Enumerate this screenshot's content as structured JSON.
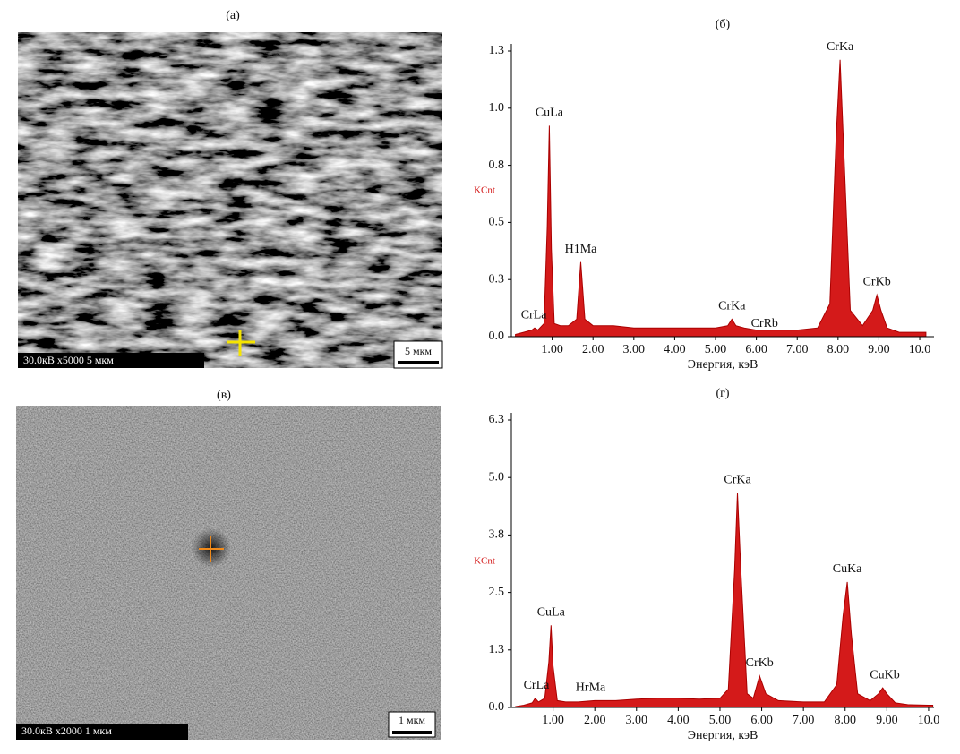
{
  "images": [
    {
      "label": "(а)",
      "info": "30.0кВ  x5000 5 мкм",
      "scale": "5 мкм"
    },
    {
      "label": "(в)",
      "info": "30.0кВ  x2000 1 мкм",
      "scale": "1 мкм"
    }
  ],
  "chart_data": [
    {
      "type": "area",
      "title": "(б)",
      "ylabel": "KCnt",
      "xlabel": "Энергия, кэВ",
      "color": "#d41a1a",
      "x": [
        0.1,
        0.3,
        0.5,
        0.57,
        0.65,
        0.8,
        0.88,
        0.93,
        0.98,
        1.05,
        1.2,
        1.4,
        1.6,
        1.7,
        1.8,
        2.0,
        2.5,
        3.0,
        3.5,
        4.0,
        4.5,
        5.0,
        5.3,
        5.4,
        5.5,
        5.7,
        6.0,
        6.5,
        7.0,
        7.5,
        7.8,
        7.95,
        8.05,
        8.15,
        8.3,
        8.6,
        8.85,
        8.95,
        9.05,
        9.2,
        9.5,
        10.0,
        10.15
      ],
      "values": [
        0.01,
        0.02,
        0.03,
        0.04,
        0.03,
        0.06,
        0.5,
        0.96,
        0.4,
        0.06,
        0.05,
        0.05,
        0.08,
        0.34,
        0.08,
        0.05,
        0.05,
        0.04,
        0.04,
        0.04,
        0.04,
        0.04,
        0.05,
        0.08,
        0.05,
        0.04,
        0.03,
        0.03,
        0.03,
        0.04,
        0.15,
        0.9,
        1.26,
        0.8,
        0.12,
        0.05,
        0.12,
        0.19,
        0.12,
        0.04,
        0.02,
        0.02,
        0.02
      ],
      "xlim": [
        0,
        10.35
      ],
      "ylim": [
        0,
        1.3
      ],
      "xticks": [
        {
          "value": 1,
          "label": "1.00"
        },
        {
          "value": 2,
          "label": "2.00"
        },
        {
          "value": 3,
          "label": "3.00"
        },
        {
          "value": 4,
          "label": "4.00"
        },
        {
          "value": 5,
          "label": "5.00"
        },
        {
          "value": 6,
          "label": "6.00"
        },
        {
          "value": 7,
          "label": "7.00"
        },
        {
          "value": 8,
          "label": "8.00"
        },
        {
          "value": 9,
          "label": "9.00"
        },
        {
          "value": 10,
          "label": "10.0"
        }
      ],
      "yticks": [
        {
          "value": 0,
          "label": "0.0"
        },
        {
          "value": 0.26,
          "label": "0.3"
        },
        {
          "value": 0.52,
          "label": "0.5"
        },
        {
          "value": 0.78,
          "label": "0.8"
        },
        {
          "value": 1.04,
          "label": "1.0"
        },
        1.3
      ],
      "annotations": [
        {
          "text": "CrLa",
          "x": 0.55
        },
        {
          "text": "CuLa",
          "x": 0.93
        },
        {
          "text": "H1Ma",
          "x": 1.7
        },
        {
          "text": "CrKa",
          "x": 5.4
        },
        {
          "text": "CrRb",
          "x": 6.2
        },
        {
          "text": "CrKa",
          "x": 8.05
        },
        {
          "text": "CrKb",
          "x": 8.95
        }
      ]
    },
    {
      "type": "area",
      "title": "(г)",
      "ylabel": "KCnt",
      "xlabel": "Энергия, кэВ",
      "color": "#d41a1a",
      "x": [
        0.1,
        0.3,
        0.5,
        0.57,
        0.65,
        0.8,
        0.9,
        0.95,
        1.0,
        1.1,
        1.3,
        1.6,
        2.0,
        2.5,
        3.0,
        3.5,
        4.0,
        4.5,
        5.0,
        5.2,
        5.35,
        5.42,
        5.5,
        5.65,
        5.8,
        5.95,
        6.1,
        6.4,
        7.0,
        7.5,
        7.8,
        7.95,
        8.05,
        8.15,
        8.3,
        8.6,
        8.8,
        8.9,
        9.0,
        9.2,
        9.5,
        10.0,
        10.1
      ],
      "values": [
        0.02,
        0.05,
        0.1,
        0.2,
        0.12,
        0.2,
        1.0,
        1.8,
        0.9,
        0.15,
        0.12,
        0.12,
        0.15,
        0.15,
        0.18,
        0.2,
        0.2,
        0.18,
        0.2,
        0.4,
        3.0,
        4.7,
        3.0,
        0.3,
        0.2,
        0.69,
        0.3,
        0.15,
        0.12,
        0.12,
        0.5,
        2.0,
        2.75,
        1.6,
        0.3,
        0.15,
        0.3,
        0.43,
        0.3,
        0.1,
        0.06,
        0.05,
        0.05
      ],
      "xlim": [
        0,
        10.13
      ],
      "ylim": [
        0,
        6.3
      ],
      "xticks": [
        {
          "value": 1,
          "label": "1.00"
        },
        {
          "value": 2,
          "label": "2.00"
        },
        {
          "value": 3,
          "label": "3.00"
        },
        {
          "value": 4,
          "label": "4.00"
        },
        {
          "value": 5,
          "label": "5.00"
        },
        {
          "value": 6,
          "label": "6.00"
        },
        {
          "value": 7,
          "label": "7.00"
        },
        {
          "value": 8,
          "label": "8.00"
        },
        {
          "value": 9,
          "label": "9.00"
        },
        {
          "value": 10,
          "label": "10.0"
        }
      ],
      "yticks": [
        {
          "value": 0,
          "label": "0.0"
        },
        {
          "value": 1.26,
          "label": "1.3"
        },
        {
          "value": 2.52,
          "label": "2.5"
        },
        {
          "value": 3.78,
          "label": "3.8"
        },
        {
          "value": 5.04,
          "label": "5.0"
        },
        6.3
      ],
      "annotations": [
        {
          "text": "CrLa",
          "x": 0.6
        },
        {
          "text": "CuLa",
          "x": 0.95
        },
        {
          "text": "HrMa",
          "x": 1.9
        },
        {
          "text": "CrKa",
          "x": 5.42
        },
        {
          "text": "CrKb",
          "x": 5.95
        },
        {
          "text": "CuKa",
          "x": 8.05
        },
        {
          "text": "CuKb",
          "x": 8.95
        }
      ]
    }
  ]
}
